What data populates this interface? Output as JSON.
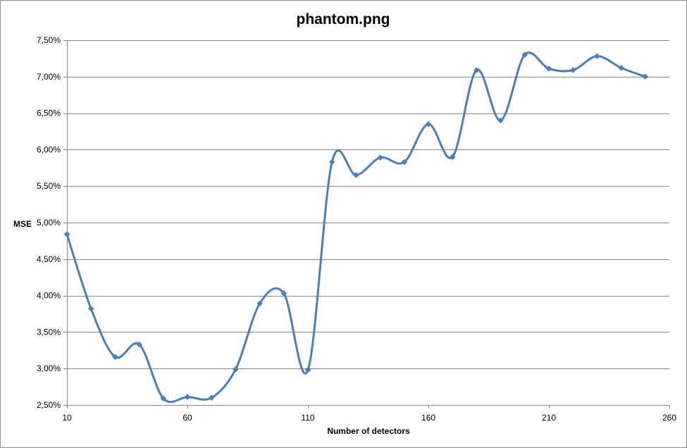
{
  "chart_data": {
    "type": "line",
    "title": "phantom.png",
    "xlabel": "Number of detectors",
    "ylabel": "MSE",
    "x": [
      10,
      20,
      30,
      40,
      50,
      60,
      70,
      80,
      90,
      100,
      110,
      120,
      130,
      140,
      150,
      160,
      170,
      180,
      190,
      200,
      210,
      220,
      230,
      240,
      250
    ],
    "series": [
      {
        "values": [
          0.0484,
          0.0382,
          0.0316,
          0.0333,
          0.0259,
          0.0261,
          0.026,
          0.0299,
          0.0389,
          0.0403,
          0.0298,
          0.0583,
          0.0565,
          0.0589,
          0.0583,
          0.0635,
          0.059,
          0.0709,
          0.064,
          0.073,
          0.0711,
          0.0709,
          0.0728,
          0.0712,
          0.07
        ],
        "color": "#4a7ebb"
      }
    ],
    "xlim": [
      10,
      260
    ],
    "ylim": [
      0.025,
      0.075
    ],
    "xticks": [
      10,
      60,
      110,
      160,
      210,
      260
    ],
    "xtick_labels": [
      "10",
      "60",
      "110",
      "160",
      "210",
      "260"
    ],
    "yticks": [
      0.025,
      0.03,
      0.035,
      0.04,
      0.045,
      0.05,
      0.055,
      0.06,
      0.065,
      0.07,
      0.075
    ],
    "ytick_labels": [
      "2,50%",
      "3,00%",
      "3,50%",
      "4,00%",
      "4,50%",
      "5,00%",
      "5,50%",
      "6,00%",
      "6,50%",
      "7,00%",
      "7,50%"
    ],
    "grid": "horizontal",
    "line_style": "smooth",
    "marker": "diamond",
    "legend": "none"
  }
}
